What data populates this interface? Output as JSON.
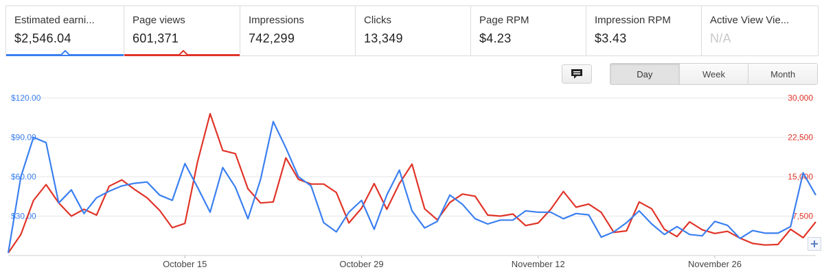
{
  "metrics": [
    {
      "label": "Estimated earni...",
      "value": "$2,546.04",
      "selected_color": "#3a7ff0"
    },
    {
      "label": "Page views",
      "value": "601,371",
      "selected_color": "#e03327"
    },
    {
      "label": "Impressions",
      "value": "742,299"
    },
    {
      "label": "Clicks",
      "value": "13,349"
    },
    {
      "label": "Page RPM",
      "value": "$4.23"
    },
    {
      "label": "Impression RPM",
      "value": "$3.43"
    },
    {
      "label": "Active View Vie...",
      "value": "N/A",
      "disabled": true
    }
  ],
  "controls": {
    "comment_icon": "comment-icon",
    "granularity": [
      "Day",
      "Week",
      "Month"
    ],
    "selected_granularity": "Day",
    "expand_icon": "plus-icon"
  },
  "colors": {
    "earnings": "#3a7ff0",
    "page_views": "#e03327",
    "grid": "#e6e6e6",
    "axis_text": "#444444"
  },
  "chart_data": {
    "type": "line",
    "grid": true,
    "x_tick_labels": [
      "October 15",
      "October 29",
      "November 12",
      "November 26"
    ],
    "x_tick_day_index": [
      14,
      28,
      42,
      56
    ],
    "y_left": {
      "range": [
        0,
        120
      ],
      "ticks": [
        30,
        60,
        90,
        120
      ],
      "tick_labels": [
        "$30.00",
        "$60.00",
        "$90.00",
        "$120.00"
      ]
    },
    "y_right": {
      "range": [
        0,
        30000
      ],
      "ticks": [
        7500,
        15000,
        22500,
        30000
      ],
      "tick_labels": [
        "7,500",
        "15,000",
        "22,500",
        "30,000"
      ]
    },
    "series": [
      {
        "name": "Estimated earnings",
        "axis": "left",
        "values": [
          2,
          60,
          90,
          86,
          40,
          50,
          32,
          44,
          49,
          53,
          55,
          56,
          46,
          42,
          70,
          52,
          33,
          67,
          52,
          28,
          58,
          102,
          82,
          60,
          53,
          25,
          18,
          33,
          42,
          20,
          46,
          65,
          34,
          21,
          26,
          46,
          39,
          28,
          24,
          27,
          27,
          34,
          33,
          33,
          28,
          32,
          31,
          14,
          18,
          25,
          34,
          24,
          16,
          22,
          16,
          15,
          26,
          23,
          13,
          19,
          17,
          17,
          22,
          63,
          46
        ]
      },
      {
        "name": "Page views",
        "axis": "right",
        "values": [
          500,
          4000,
          10500,
          13500,
          10000,
          7500,
          8800,
          7700,
          13200,
          14400,
          12600,
          11000,
          8600,
          5300,
          6100,
          17800,
          27000,
          20000,
          19400,
          12700,
          10000,
          10200,
          18600,
          14500,
          13600,
          13600,
          12000,
          6200,
          9000,
          13700,
          8800,
          13700,
          17400,
          8900,
          6800,
          10100,
          11700,
          11300,
          7700,
          7500,
          7900,
          5700,
          6200,
          8800,
          12200,
          9200,
          9800,
          8200,
          4400,
          4700,
          10200,
          8900,
          5000,
          3600,
          6400,
          4900,
          4200,
          4600,
          3300,
          2300,
          2000,
          2100,
          5000,
          3400,
          6400
        ]
      }
    ]
  }
}
